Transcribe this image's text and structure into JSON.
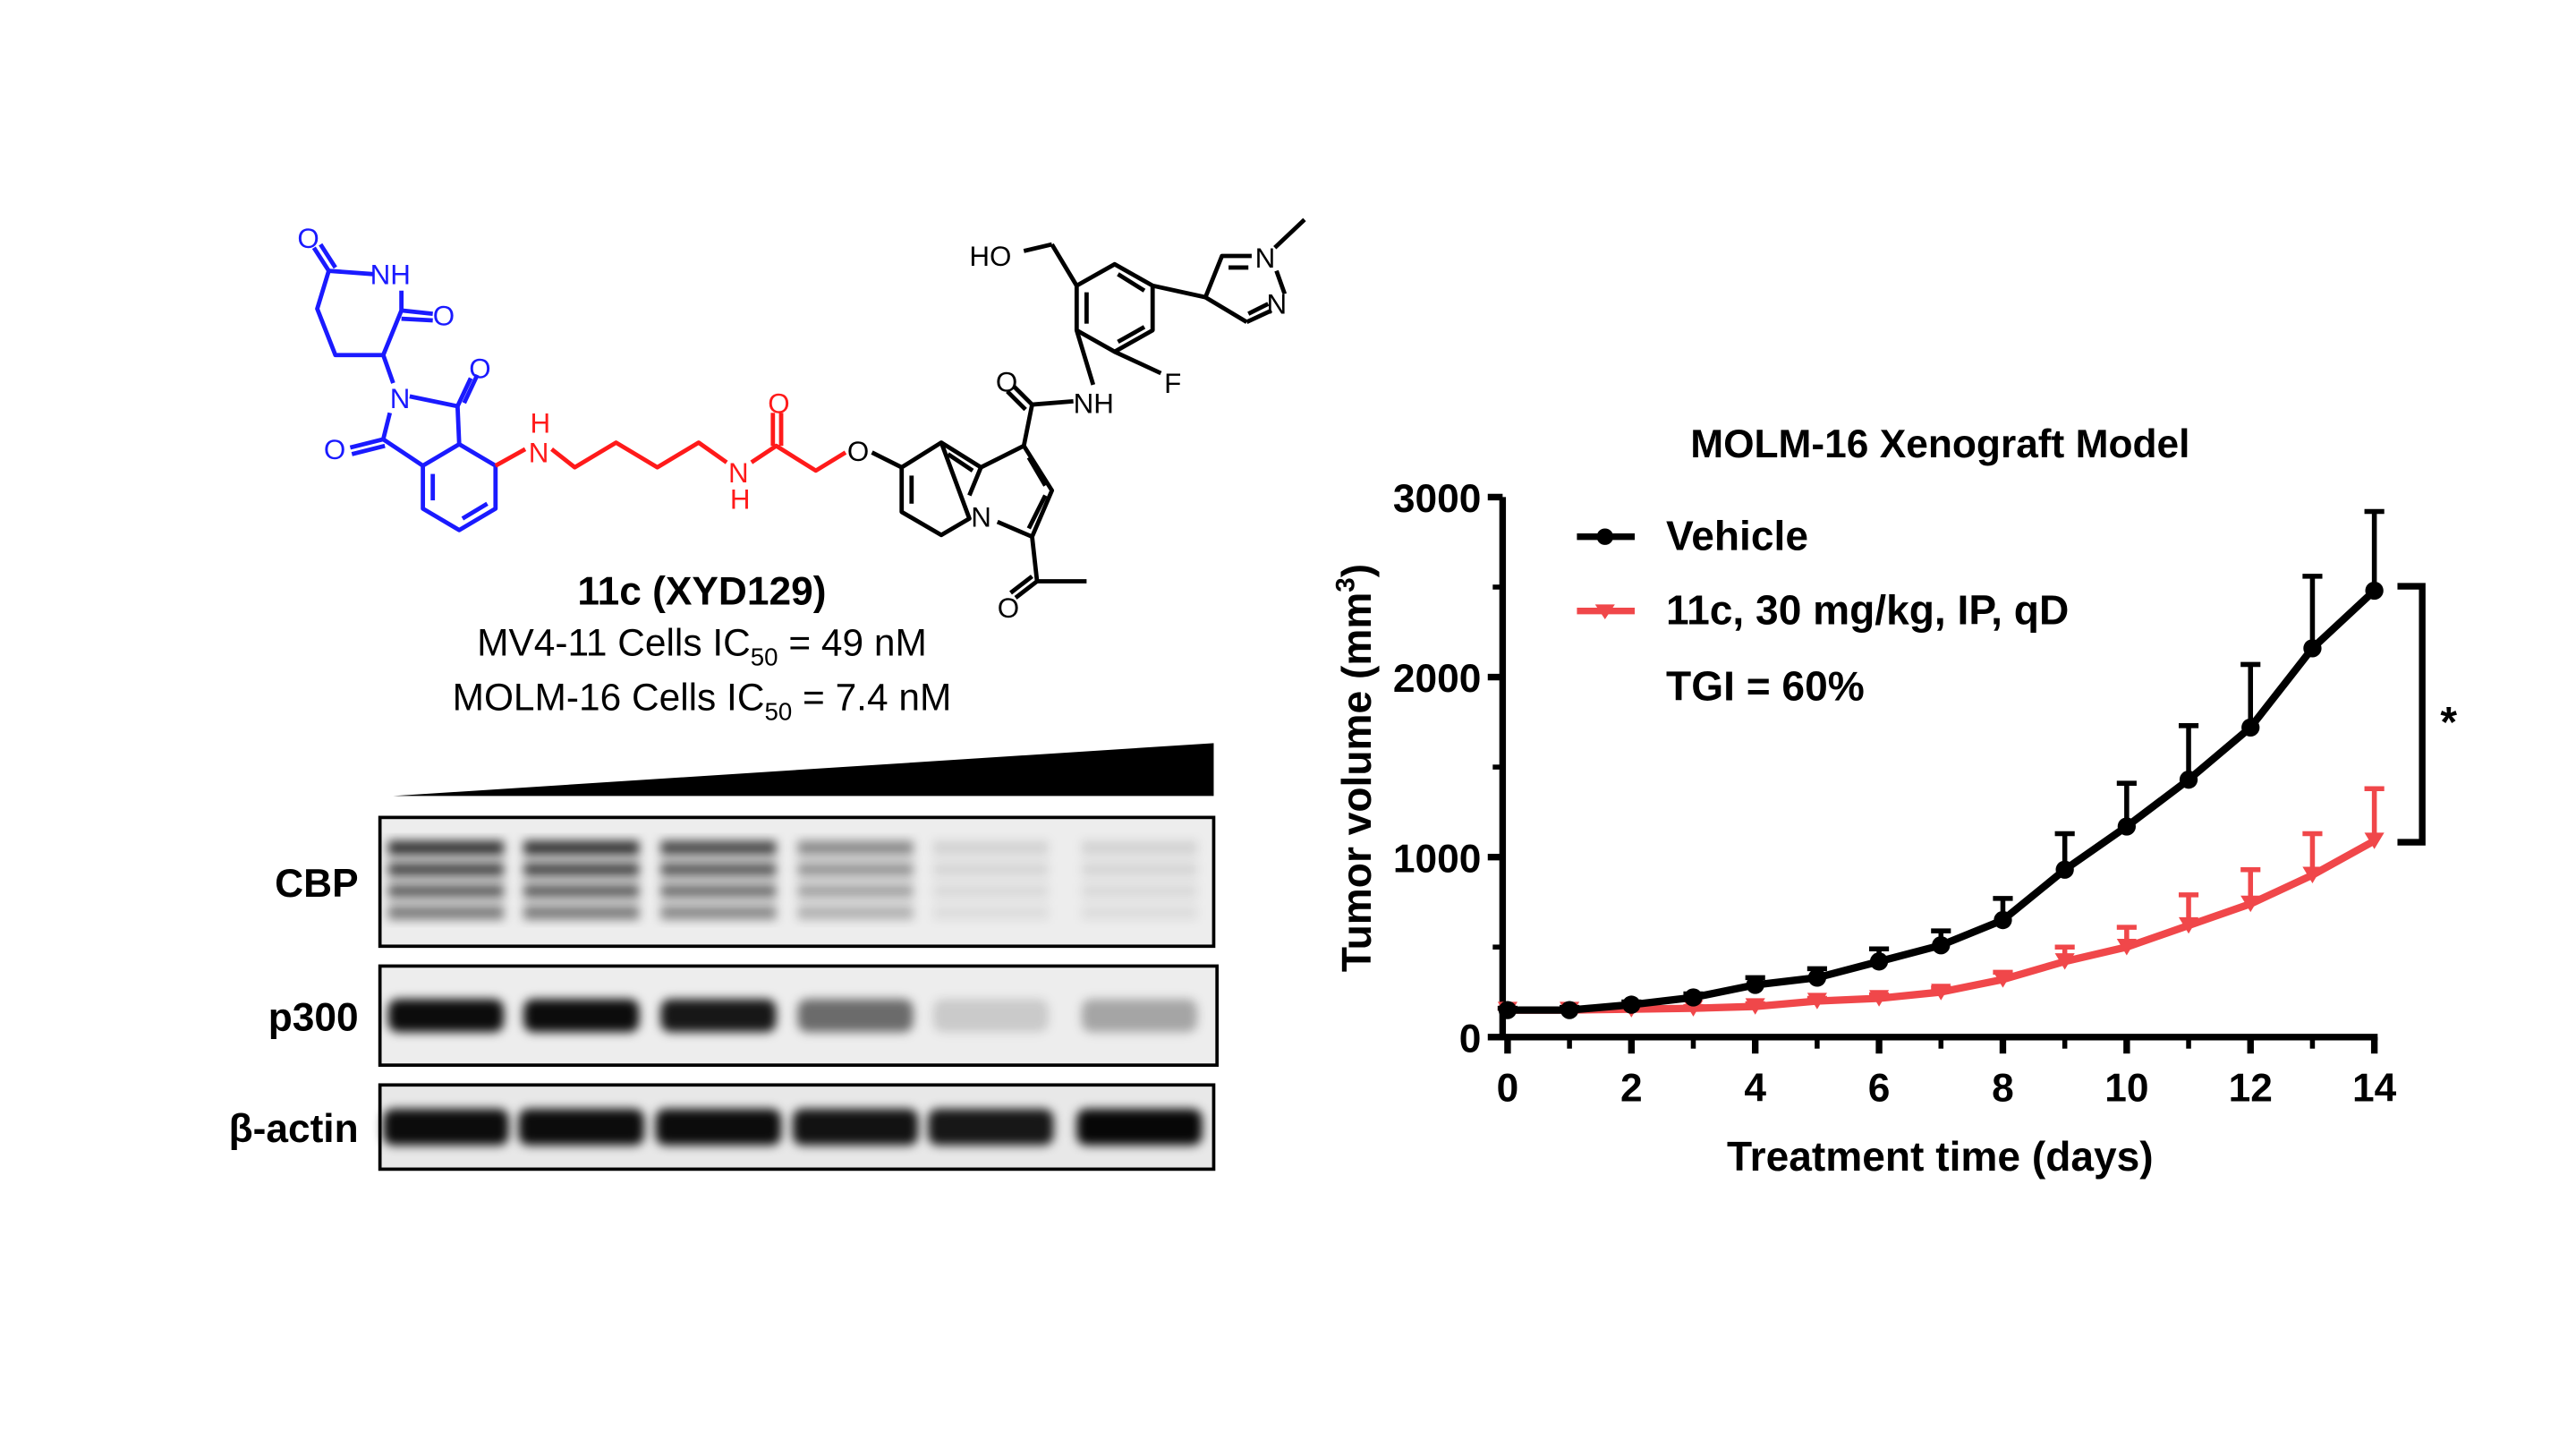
{
  "compound": {
    "name": "11c (XYD129)",
    "line1_prefix": "MV4-11 Cells IC",
    "line1_sub": "50",
    "line1_suffix": " = 49 nM",
    "line2_prefix": "MOLM-16 Cells IC",
    "line2_sub": "50",
    "line2_suffix": " = 7.4 nM",
    "colors": {
      "e3_ligand": "#1a1aff",
      "linker": "#ff1a1a",
      "warhead": "#000000"
    },
    "atoms": {
      "O": "O",
      "NH": "NH",
      "N": "N",
      "H": "H",
      "HO": "HO",
      "F": "F"
    }
  },
  "western_blot": {
    "rows": [
      {
        "label": "CBP",
        "intensity": [
          0.85,
          0.85,
          0.75,
          0.45,
          0.12,
          0.12
        ]
      },
      {
        "label": "p300",
        "intensity": [
          0.95,
          0.95,
          0.9,
          0.55,
          0.15,
          0.3
        ]
      },
      {
        "label": "β-actin",
        "intensity": [
          0.95,
          0.95,
          0.95,
          0.92,
          0.9,
          0.97
        ]
      }
    ],
    "concentration_gradient": "increasing"
  },
  "chart_data": {
    "type": "line",
    "title": "MOLM-16 Xenograft Model",
    "xlabel": "Treatment time (days)",
    "ylabel": "Tumor volume (mm",
    "ylabel_sup": "3",
    "ylabel_end": ")",
    "xlim": [
      0,
      14
    ],
    "ylim": [
      0,
      3000
    ],
    "xticks": [
      "0",
      "2",
      "4",
      "6",
      "8",
      "10",
      "12",
      "14"
    ],
    "yticks": [
      "0",
      "1000",
      "2000",
      "3000"
    ],
    "legend_position": "top-left",
    "annotation": "TGI = 60%",
    "significance": "*",
    "x": [
      0,
      1,
      2,
      3,
      4,
      5,
      6,
      7,
      8,
      9,
      10,
      11,
      12,
      13,
      14
    ],
    "series": [
      {
        "name": "Vehicle",
        "color": "#000000",
        "marker": "circle",
        "values": [
          150,
          150,
          180,
          220,
          290,
          330,
          420,
          510,
          650,
          930,
          1170,
          1430,
          1720,
          2160,
          2480
        ],
        "error_upper": [
          160,
          165,
          195,
          240,
          330,
          380,
          490,
          590,
          770,
          1130,
          1410,
          1730,
          2070,
          2560,
          2920
        ]
      },
      {
        "name": "11c, 30 mg/kg, IP, qD",
        "color": "#f0474a",
        "marker": "triangle-down",
        "values": [
          150,
          150,
          155,
          160,
          170,
          200,
          215,
          250,
          320,
          420,
          500,
          620,
          740,
          900,
          1090
        ],
        "error_upper": [
          160,
          160,
          165,
          170,
          185,
          215,
          235,
          275,
          360,
          500,
          610,
          790,
          930,
          1130,
          1380
        ]
      }
    ]
  }
}
